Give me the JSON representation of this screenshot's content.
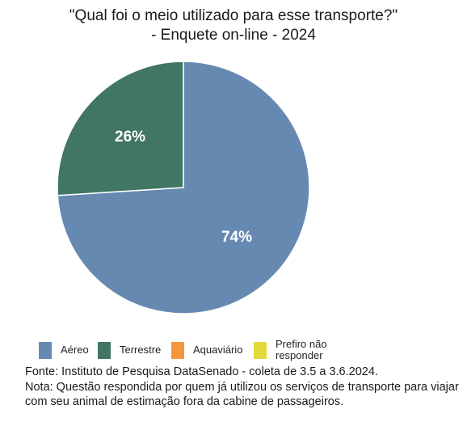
{
  "chart_data": {
    "type": "pie",
    "title": "\"Qual foi o meio utilizado para esse transporte?\"",
    "subtitle": "- Enquete on-line - 2024",
    "slices": [
      {
        "name": "Aéreo",
        "value": 74,
        "label": "74%",
        "color": "#6689B2"
      },
      {
        "name": "Terrestre",
        "value": 26,
        "label": "26%",
        "color": "#417564"
      },
      {
        "name": "Aquaviário",
        "value": 0,
        "label": "",
        "color": "#F5973C"
      },
      {
        "name": "Prefiro não responder",
        "value": 0,
        "label": "",
        "color": "#E2D93E"
      }
    ],
    "legend_position": "bottom"
  },
  "legend": [
    {
      "label": "Aéreo",
      "color": "#6689B2"
    },
    {
      "label": "Terrestre",
      "color": "#417564"
    },
    {
      "label": "Aquaviário",
      "color": "#F5973C"
    },
    {
      "label": "Prefiro não responder",
      "color": "#E2D93E"
    }
  ],
  "footnote": {
    "source": "Fonte: Instituto de Pesquisa DataSenado - coleta de 3.5 a 3.6.2024.",
    "note": "Nota: Questão respondida por quem já utilizou os serviços de transporte para viajar com seu animal de estimação fora da cabine de passageiros."
  }
}
